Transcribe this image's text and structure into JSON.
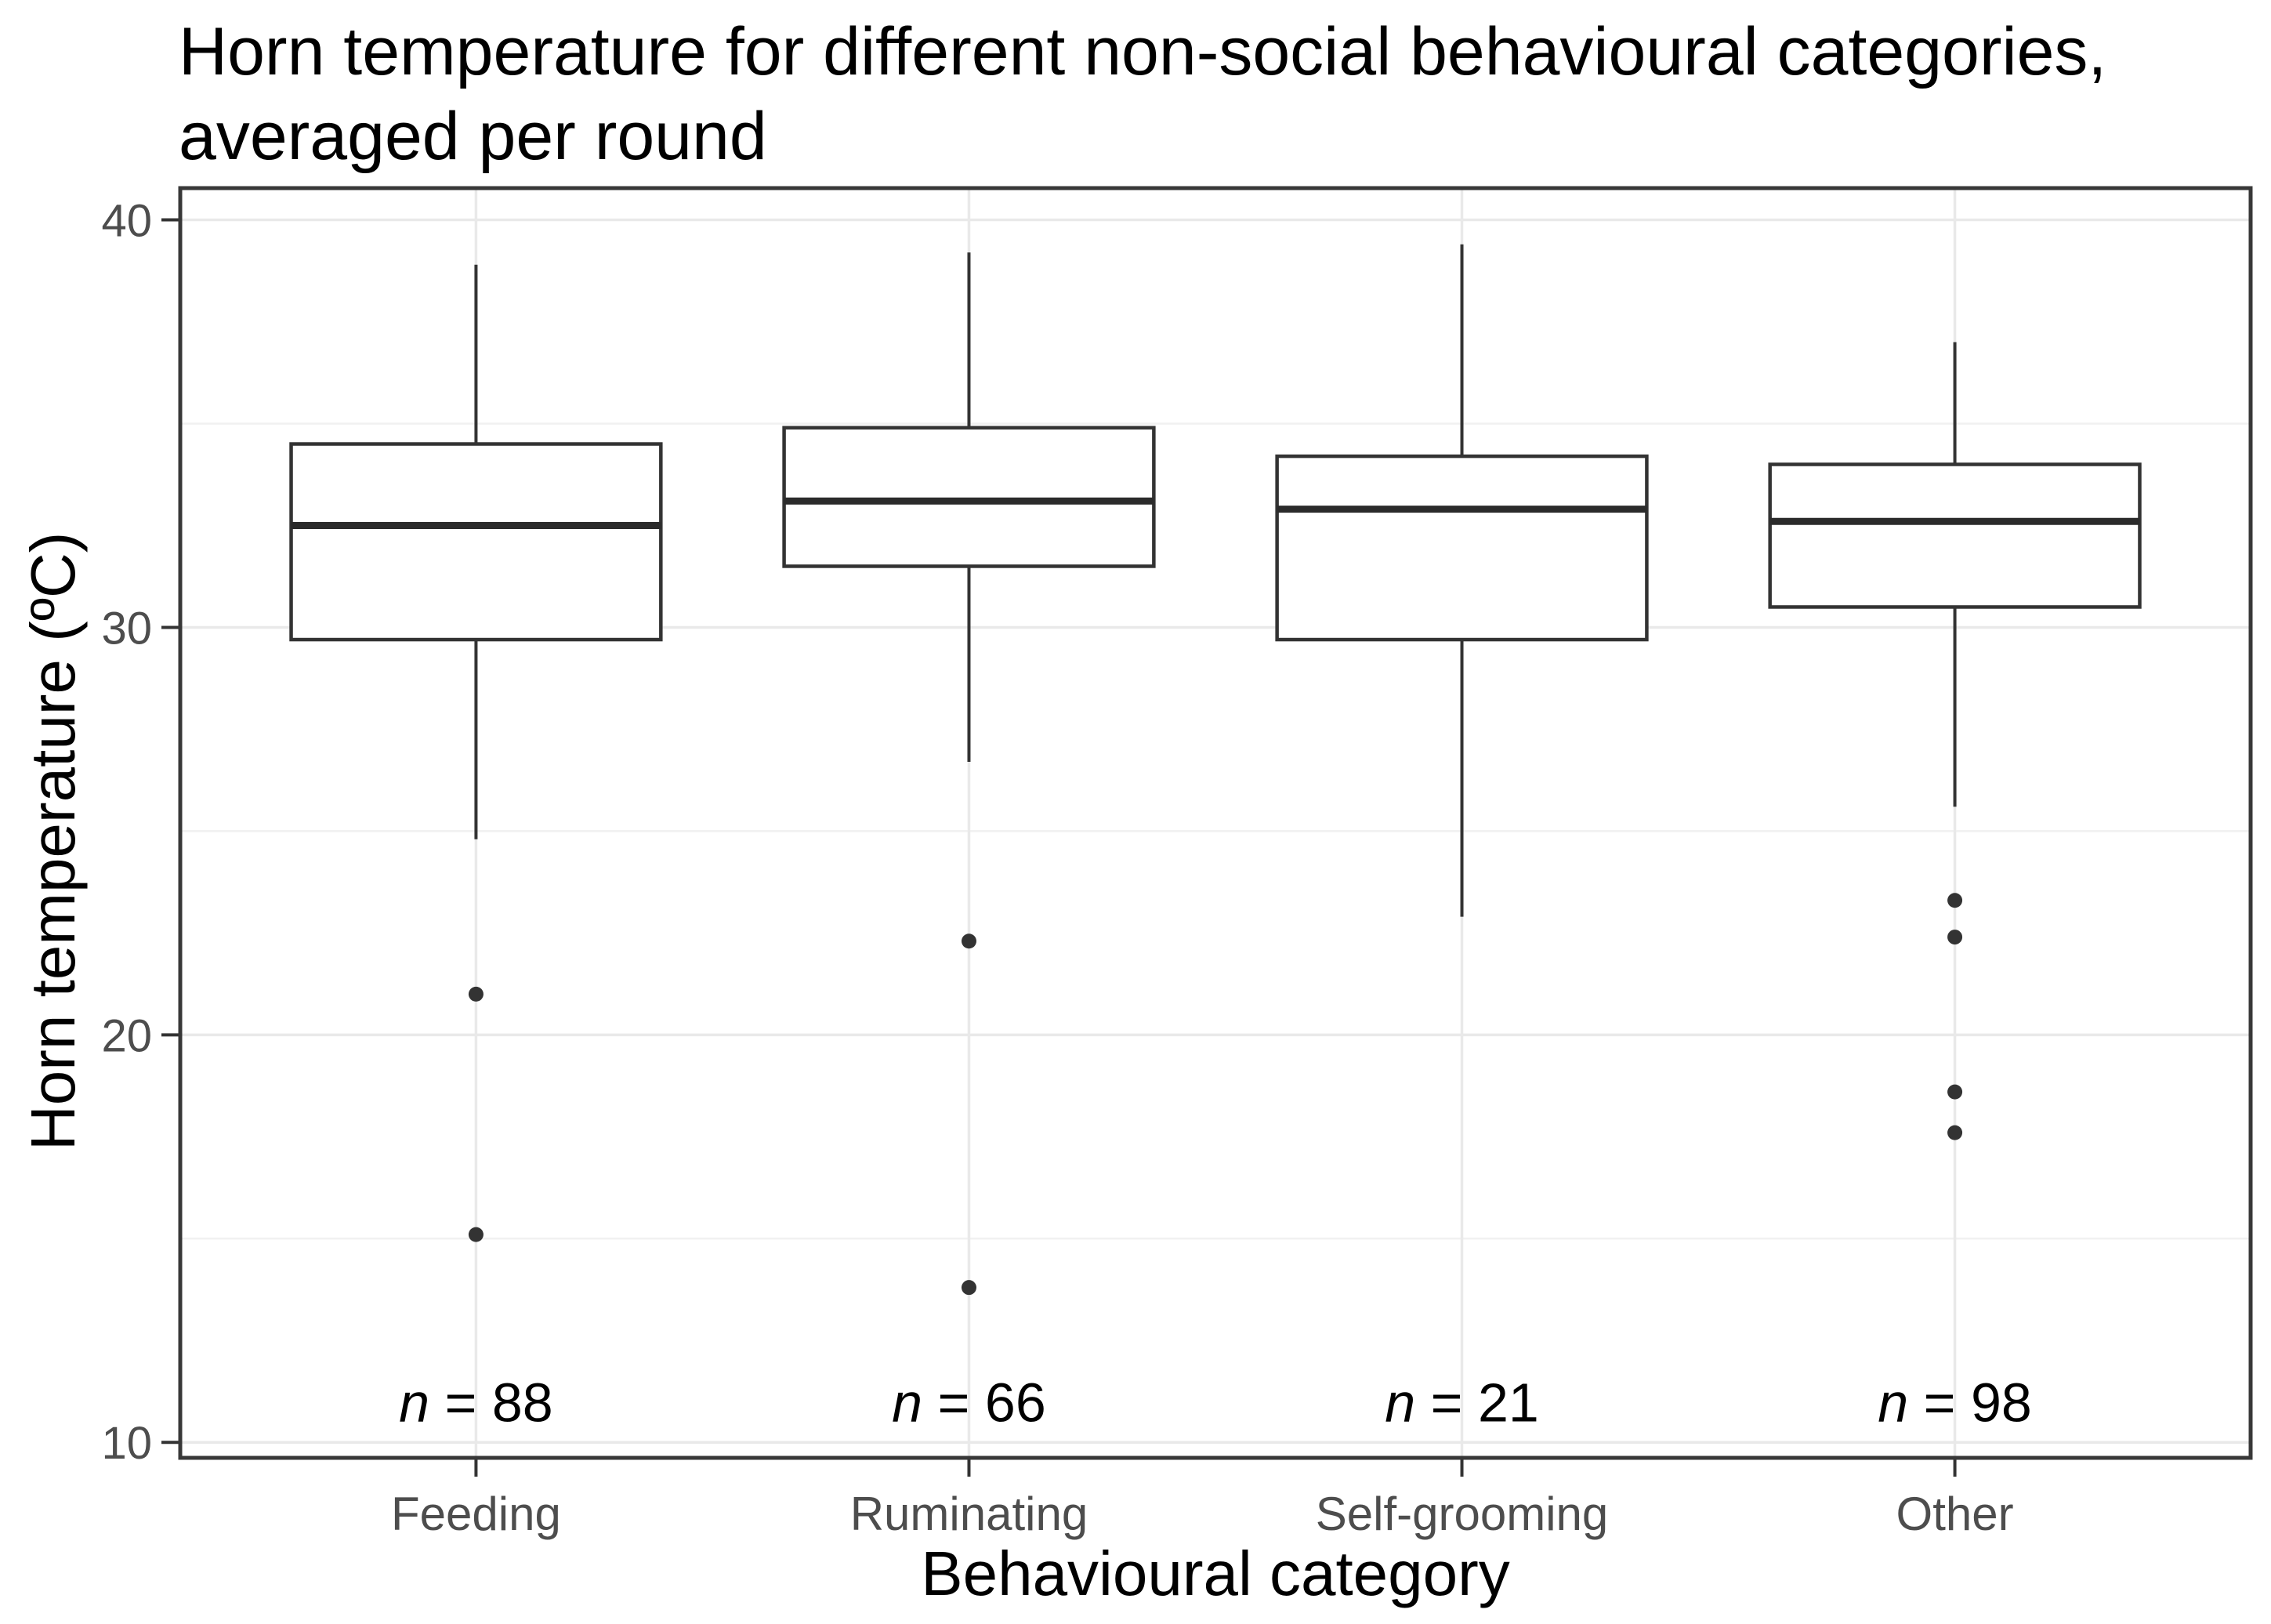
{
  "chart_data": {
    "type": "boxplot",
    "title": "Horn temperature for different non-social behavioural categories, averaged per round",
    "xlabel": "Behavioural category",
    "ylabel": "Horn temperature (ºC)",
    "categories": [
      "Feeding",
      "Ruminating",
      "Self-grooming",
      "Other"
    ],
    "y_ticks": [
      10,
      20,
      30,
      40
    ],
    "y_minor_ticks": [
      15,
      25,
      35
    ],
    "ylim": [
      10,
      40
    ],
    "y_range_expanded": [
      9.62,
      40.78
    ],
    "grid": "horizontal major+minor gridlines, vertical major gridline at each category, white panel with dark border, no legend",
    "legend": "none",
    "sample_size_label_y": 11,
    "series": [
      {
        "category": "Feeding",
        "n": 88,
        "n_label": "n = 88",
        "whisker_low": 24.8,
        "q1": 29.7,
        "median": 32.5,
        "q3": 34.5,
        "whisker_high": 38.9,
        "outliers": [
          21.0,
          15.1
        ]
      },
      {
        "category": "Ruminating",
        "n": 66,
        "n_label": "n = 66",
        "whisker_low": 26.7,
        "q1": 31.5,
        "median": 33.1,
        "q3": 34.9,
        "whisker_high": 39.2,
        "outliers": [
          22.3,
          13.8
        ]
      },
      {
        "category": "Self-grooming",
        "n": 21,
        "n_label": "n = 21",
        "whisker_low": 22.9,
        "q1": 29.7,
        "median": 32.9,
        "q3": 34.2,
        "whisker_high": 39.4,
        "outliers": []
      },
      {
        "category": "Other",
        "n": 98,
        "n_label": "n = 98",
        "whisker_low": 25.6,
        "q1": 30.5,
        "median": 32.6,
        "q3": 34.0,
        "whisker_high": 37.0,
        "outliers": [
          23.3,
          22.4,
          18.6,
          17.6
        ]
      }
    ],
    "colors": {
      "box_stroke": "#333333",
      "box_fill": "#ffffff",
      "median": "#2b2b2b",
      "outlier": "#333333",
      "grid_major": "#e9e9e9",
      "grid_minor": "#f1f1f1",
      "panel_border": "#383838",
      "tick_mark": "#333333",
      "tick_label": "#4d4d4d",
      "axis_title": "#000000",
      "title": "#000000",
      "background": "#ffffff"
    }
  }
}
